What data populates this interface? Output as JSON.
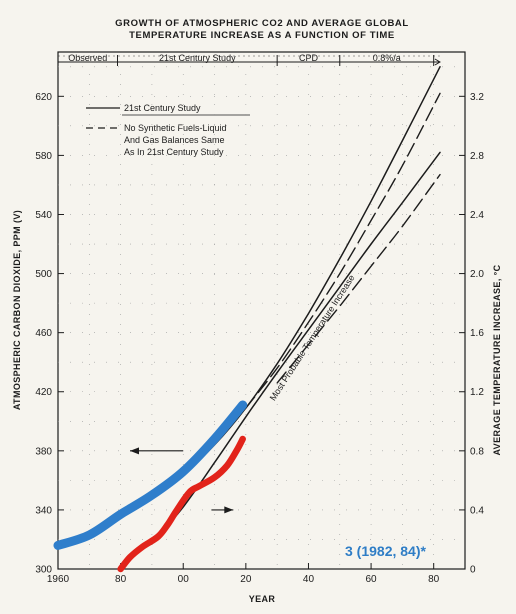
{
  "chart_data": {
    "type": "line",
    "title": "GROWTH OF ATMOSPHERIC CO2 AND AVERAGE GLOBAL",
    "subtitle": "TEMPERATURE INCREASE AS A FUNCTION OF TIME",
    "xlabel": "YEAR",
    "ylabel": "ATMOSPHERIC CARBON DIOXIDE, PPM (V)",
    "y2label": "AVERAGE TEMPERATURE INCREASE, °C",
    "xlim": [
      1960,
      2090
    ],
    "ylim": [
      300,
      650
    ],
    "y2lim": [
      0,
      3.5
    ],
    "x_ticks": [
      {
        "v": 1960,
        "label": "1960"
      },
      {
        "v": 1980,
        "label": "80"
      },
      {
        "v": 2000,
        "label": "00"
      },
      {
        "v": 2020,
        "label": "20"
      },
      {
        "v": 2040,
        "label": "40"
      },
      {
        "v": 2060,
        "label": "60"
      },
      {
        "v": 2080,
        "label": "80"
      }
    ],
    "y_ticks": [
      300,
      340,
      380,
      420,
      460,
      500,
      540,
      580,
      620
    ],
    "y2_ticks": [
      "0",
      "0.4",
      "0.8",
      "1.2",
      "1.6",
      "2.0",
      "2.4",
      "2.8",
      "3.2"
    ],
    "periods": [
      {
        "label": "Observed",
        "x0": 1960,
        "x1": 1979
      },
      {
        "label": "21st Century Study",
        "x0": 1979,
        "x1": 2030
      },
      {
        "label": "CPD",
        "x0": 2030,
        "x1": 2050
      },
      {
        "label": "0.8%/a",
        "x0": 2050,
        "x1": 2080
      }
    ],
    "legend": {
      "position": "top-left",
      "entries": [
        {
          "lines": [
            "21st Century Study"
          ],
          "style": "solid"
        },
        {
          "lines": [
            "No Synthetic Fuels-Liquid",
            "And Gas Balances Same",
            "As In 21st Century Study"
          ],
          "style": "dashed"
        }
      ]
    },
    "annotation": "Most Probable Temperature Increase",
    "series": [
      {
        "name": "21st Century Study",
        "axis": "left",
        "style": "solid",
        "color": "#1c1c1c",
        "x": [
          1980,
          1990,
          2000,
          2010,
          2020,
          2030,
          2040,
          2050,
          2060,
          2070,
          2082
        ],
        "y": [
          336,
          348,
          364,
          384,
          409,
          439,
          473,
          510,
          549,
          590,
          640
        ]
      },
      {
        "axis": "left",
        "style": "dashed",
        "color": "#1c1c1c",
        "x": [
          2020,
          2030,
          2040,
          2050,
          2060,
          2070,
          2082
        ],
        "y": [
          409,
          436,
          467,
          500,
          536,
          573,
          622
        ]
      },
      {
        "axis": "right",
        "style": "solid",
        "color": "#1c1c1c",
        "x": [
          1990,
          2000,
          2010,
          2020,
          2030,
          2040,
          2050,
          2060,
          2070,
          2082
        ],
        "y": [
          0.17,
          0.42,
          0.72,
          1.03,
          1.33,
          1.62,
          1.91,
          2.2,
          2.48,
          2.82
        ]
      },
      {
        "axis": "right",
        "style": "dashed",
        "color": "#1c1c1c",
        "x": [
          2030,
          2040,
          2050,
          2060,
          2070,
          2082
        ],
        "y": [
          1.26,
          1.52,
          1.78,
          2.05,
          2.32,
          2.67
        ]
      },
      {
        "name": "overlay-observed-co2",
        "axis": "left",
        "style": "thick",
        "color": "#2f7ecb",
        "x": [
          1960,
          1970,
          1980,
          1990,
          2000,
          2010,
          2019
        ],
        "y": [
          316,
          323,
          337,
          350,
          366,
          388,
          411
        ]
      },
      {
        "name": "overlay-observed-temperature",
        "axis": "right",
        "style": "thick",
        "color": "#e2231a",
        "x": [
          1980,
          1983,
          1987,
          1992,
          1995,
          1998,
          2002,
          2005,
          2010,
          2014,
          2017,
          2019
        ],
        "y": [
          0.0,
          0.08,
          0.15,
          0.22,
          0.3,
          0.4,
          0.52,
          0.56,
          0.62,
          0.7,
          0.8,
          0.88
        ]
      }
    ],
    "arrows": [
      {
        "axis": "left",
        "x_from": 2000,
        "x_to": 1983,
        "y": 380,
        "direction": "left"
      },
      {
        "axis": "right",
        "x_from": 2009,
        "x_to": 2016,
        "y": 0.4,
        "direction": "right"
      }
    ],
    "blue_annotation": "3 (1982, 84)*",
    "colors": {
      "ink": "#1c1c1c",
      "overlay_blue": "#2f7ecb",
      "overlay_red": "#e2231a",
      "annotation_blue": "#2e7dc6"
    }
  }
}
